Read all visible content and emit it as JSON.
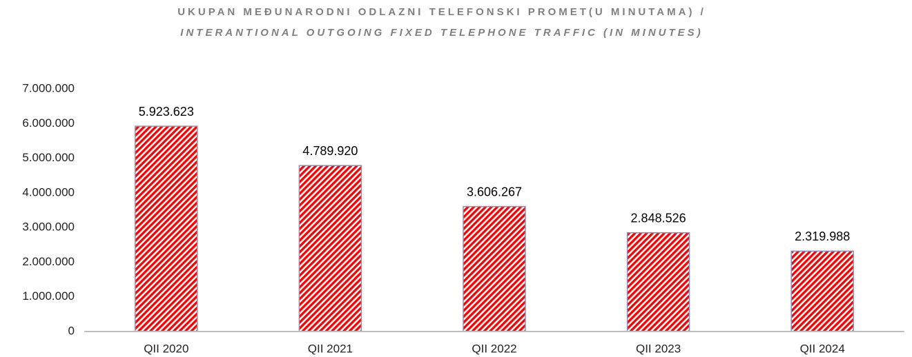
{
  "chart_data": {
    "type": "bar",
    "title": "UKUPAN MEĐUNARODNI ODLAZNI TELEFONSKI PROMET(U MINUTAMA) /",
    "subtitle": "INTERANTIONAL OUTGOING FIXED TELEPHONE TRAFFIC (IN MINUTES)",
    "categories": [
      "QII 2020",
      "QII 2021",
      "QII 2022",
      "QII 2023",
      "QII 2024"
    ],
    "values": [
      5923623,
      4789920,
      3606267,
      2848526,
      2319988
    ],
    "value_labels": [
      "5.923.623",
      "4.789.920",
      "3.606.267",
      "2.848.526",
      "2.319.988"
    ],
    "color": "#ff0000",
    "ylim": [
      0,
      7000000
    ],
    "yticks": [
      0,
      {
        "value": 1000000,
        "label": "1.000.000"
      },
      {
        "value": 2000000,
        "label": "2.000.000"
      },
      {
        "value": 3000000,
        "label": "3.000.000"
      },
      {
        "value": 4000000,
        "label": "4.000.000"
      },
      {
        "value": 5000000,
        "label": "5.000.000"
      },
      {
        "value": 6000000,
        "label": "6.000.000"
      },
      {
        "value": 7000000,
        "label": "7.000.000"
      }
    ],
    "grid": false
  }
}
